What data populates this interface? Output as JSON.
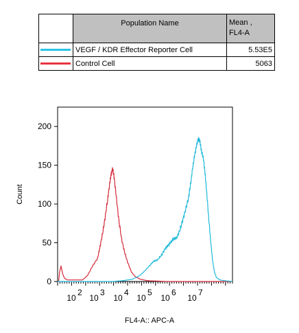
{
  "legend_table": {
    "header_name": "Population Name",
    "header_mean_line1": "Mean ,",
    "header_mean_line2": "FL4-A",
    "rows": [
      {
        "name": "VEGF / KDR Effector Reporter Cell",
        "mean": "5.53E5",
        "color": "#29c5e6"
      },
      {
        "name": "Control Cell",
        "mean": "5063",
        "color": "#e8333f"
      }
    ]
  },
  "chart_data": {
    "type": "line",
    "xlabel": "FL4-A:: APC-A",
    "ylabel": "Count",
    "xscale": "log",
    "xlim": [
      0.8,
      4.3
    ],
    "ylim": [
      0,
      225
    ],
    "y_ticks": [
      0,
      50,
      100,
      150,
      200
    ],
    "x_tick_labels": [
      {
        "base": "10",
        "exp": "2"
      },
      {
        "base": "10",
        "exp": "3"
      },
      {
        "base": "10",
        "exp": "4"
      },
      {
        "base": "10",
        "exp": "5"
      },
      {
        "base": "10",
        "exp": "6"
      },
      {
        "base": "10",
        "exp": "7"
      }
    ],
    "series": [
      {
        "name": "Control Cell",
        "color": "#d42a3a",
        "points": [
          [
            0.82,
            0
          ],
          [
            0.84,
            12
          ],
          [
            0.87,
            20
          ],
          [
            0.9,
            10
          ],
          [
            0.94,
            4
          ],
          [
            1.0,
            2
          ],
          [
            1.1,
            2
          ],
          [
            1.2,
            2
          ],
          [
            1.3,
            2
          ],
          [
            1.4,
            8
          ],
          [
            1.5,
            20
          ],
          [
            1.6,
            30
          ],
          [
            1.65,
            45
          ],
          [
            1.7,
            62
          ],
          [
            1.75,
            82
          ],
          [
            1.8,
            105
          ],
          [
            1.84,
            125
          ],
          [
            1.87,
            138
          ],
          [
            1.9,
            146
          ],
          [
            1.93,
            135
          ],
          [
            1.97,
            112
          ],
          [
            2.02,
            82
          ],
          [
            2.08,
            55
          ],
          [
            2.14,
            38
          ],
          [
            2.2,
            25
          ],
          [
            2.28,
            12
          ],
          [
            2.36,
            6
          ],
          [
            2.45,
            3
          ],
          [
            2.6,
            1
          ],
          [
            3.0,
            0
          ],
          [
            3.5,
            0
          ],
          [
            4.3,
            0
          ]
        ]
      },
      {
        "name": "VEGF / KDR Effector Reporter Cell",
        "color": "#1fb8da",
        "points": [
          [
            0.8,
            0
          ],
          [
            1.0,
            0
          ],
          [
            1.5,
            0
          ],
          [
            1.9,
            0
          ],
          [
            2.1,
            1
          ],
          [
            2.3,
            3
          ],
          [
            2.45,
            8
          ],
          [
            2.55,
            14
          ],
          [
            2.65,
            21
          ],
          [
            2.72,
            26
          ],
          [
            2.8,
            28
          ],
          [
            2.88,
            34
          ],
          [
            2.95,
            42
          ],
          [
            3.0,
            46
          ],
          [
            3.06,
            50
          ],
          [
            3.12,
            55
          ],
          [
            3.18,
            56
          ],
          [
            3.24,
            65
          ],
          [
            3.3,
            78
          ],
          [
            3.36,
            92
          ],
          [
            3.42,
            108
          ],
          [
            3.46,
            125
          ],
          [
            3.5,
            145
          ],
          [
            3.54,
            162
          ],
          [
            3.58,
            175
          ],
          [
            3.62,
            185
          ],
          [
            3.65,
            180
          ],
          [
            3.68,
            168
          ],
          [
            3.72,
            158
          ],
          [
            3.75,
            140
          ],
          [
            3.78,
            118
          ],
          [
            3.82,
            85
          ],
          [
            3.86,
            55
          ],
          [
            3.9,
            28
          ],
          [
            3.94,
            12
          ],
          [
            3.98,
            5
          ],
          [
            4.05,
            2
          ],
          [
            4.15,
            1
          ],
          [
            4.3,
            0
          ]
        ]
      }
    ]
  }
}
